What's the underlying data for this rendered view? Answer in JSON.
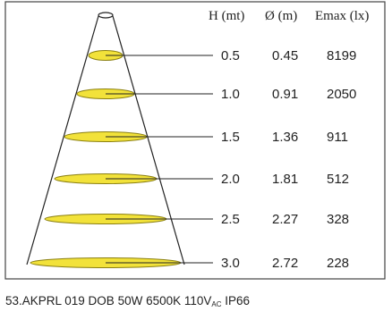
{
  "headers": {
    "height": "H (mt)",
    "diameter": "Ø (m)",
    "emax": "Emax (lx)"
  },
  "rows": [
    {
      "h": "0.5",
      "d": "0.45",
      "e": "8199"
    },
    {
      "h": "1.0",
      "d": "0.91",
      "e": "2050"
    },
    {
      "h": "1.5",
      "d": "1.36",
      "e": "911"
    },
    {
      "h": "2.0",
      "d": "1.81",
      "e": "512"
    },
    {
      "h": "2.5",
      "d": "2.27",
      "e": "328"
    },
    {
      "h": "3.0",
      "d": "2.72",
      "e": "228"
    }
  ],
  "caption": {
    "main": "53.AKPRL 019 DOB 50W 6500K 110V",
    "subscript": "AC",
    "suffix": " IP66"
  },
  "colors": {
    "ellipse_fill": "#f2e23a",
    "ellipse_stroke": "#8a7f10",
    "line": "#222222",
    "border": "#444444"
  }
}
